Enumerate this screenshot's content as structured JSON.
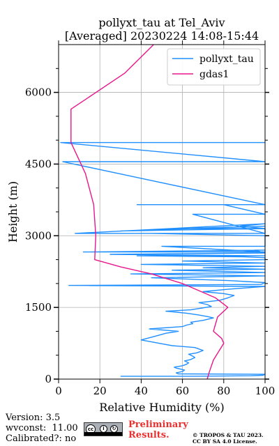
{
  "chart_data": {
    "type": "line",
    "title": "pollyxt_tau at Tel_Aviv",
    "subtitle": "[Averaged] 20230224 14:08-15:44",
    "xlabel": "Relative Humidity (%)",
    "ylabel": "Height (m)",
    "xlim": [
      0,
      100
    ],
    "ylim": [
      0,
      7000
    ],
    "xticks": [
      0,
      20,
      40,
      60,
      80,
      100
    ],
    "yticks": [
      0,
      1500,
      3000,
      4500,
      6000
    ],
    "grid": true,
    "legend_position": "top-right",
    "series": [
      {
        "name": "pollyxt_tau",
        "color": "#1f8fff",
        "x": [
          30,
          65,
          93,
          99,
          100,
          58,
          57,
          60,
          61,
          59,
          57,
          56,
          60,
          62,
          63,
          61,
          64,
          66,
          65,
          63,
          67,
          70,
          68,
          66,
          55,
          50,
          40,
          47,
          52,
          58,
          44,
          60,
          62,
          65,
          64,
          70,
          75,
          72,
          68,
          62,
          52,
          64,
          70,
          74,
          72,
          68,
          78,
          82,
          85,
          80,
          70,
          82,
          100,
          5,
          98,
          100,
          83,
          45,
          100,
          35,
          100,
          55,
          100,
          70,
          100,
          40,
          100,
          60,
          100,
          100,
          90,
          38,
          100,
          25,
          100,
          95,
          100,
          12,
          100,
          50,
          100,
          100,
          45,
          100,
          100,
          100,
          100,
          60,
          100,
          100,
          30,
          100,
          88,
          100,
          8,
          100,
          65,
          100,
          80,
          100,
          38,
          100,
          2,
          100,
          1,
          100
        ],
        "y": [
          60,
          60,
          70,
          80,
          100,
          110,
          130,
          160,
          190,
          210,
          230,
          250,
          280,
          310,
          340,
          380,
          410,
          450,
          480,
          520,
          550,
          600,
          630,
          660,
          700,
          740,
          820,
          900,
          960,
          1000,
          1050,
          1100,
          1130,
          1160,
          1190,
          1230,
          1280,
          1310,
          1340,
          1380,
          1420,
          1450,
          1490,
          1520,
          1560,
          1600,
          1650,
          1700,
          1750,
          1790,
          1830,
          1880,
          1940,
          1960,
          1980,
          2020,
          2060,
          2120,
          2160,
          2200,
          2230,
          2280,
          2300,
          2330,
          2360,
          2400,
          2430,
          2470,
          2500,
          2540,
          2560,
          2580,
          2580,
          2610,
          2640,
          2700,
          2700,
          2660,
          2660,
          2780,
          2780,
          3000,
          3050,
          3050,
          3100,
          3100,
          3150,
          3150,
          3200,
          3200,
          3100,
          3150,
          3200,
          3250,
          3050,
          3050,
          3450,
          3450,
          3650,
          3650,
          3650,
          3650,
          4550,
          4550,
          4950,
          4950
        ]
      },
      {
        "name": "gdas1",
        "color": "#e8168c",
        "x": [
          72,
          73,
          75,
          80,
          79,
          75,
          77,
          82,
          76,
          60,
          45,
          30,
          17.5,
          18,
          17,
          13,
          6,
          6,
          32,
          46
        ],
        "y": [
          0,
          150,
          400,
          750,
          850,
          1000,
          1300,
          1500,
          1700,
          2000,
          2200,
          2350,
          2500,
          3000,
          3650,
          4300,
          4950,
          5650,
          6400,
          7000
        ]
      }
    ]
  },
  "footer": {
    "version": "Version: 3.5",
    "wvconst": "wvconst:  11.00",
    "calibrated": "Calibrated?: no",
    "preliminary_line1": "Preliminary",
    "preliminary_line2": "Results.",
    "copyright_line1": "© TROPOS & TAU 2023.",
    "copyright_line2": "CC BY SA 4.0 License.",
    "cc_label": "cc",
    "cc_by": "BY",
    "cc_sa": "SA"
  }
}
